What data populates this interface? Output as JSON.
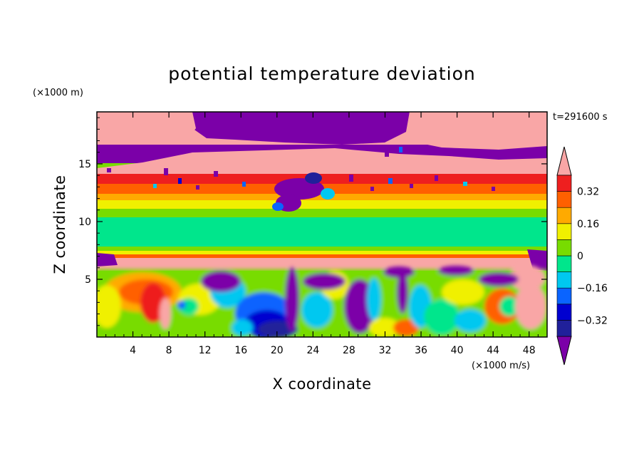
{
  "chart_data": {
    "type": "heatmap",
    "title": "potential temperature deviation",
    "xlabel": "X coordinate",
    "ylabel": "Z coordinate",
    "x_unit": "(×1000 m/s)",
    "y_unit": "(×1000 m)",
    "time_label": "t=291600 s",
    "xlim": [
      0,
      50
    ],
    "ylim": [
      0,
      19.5
    ],
    "x_ticks": [
      4,
      8,
      12,
      16,
      20,
      24,
      28,
      32,
      36,
      40,
      44,
      48
    ],
    "y_ticks": [
      5,
      10,
      15
    ],
    "colorbar": {
      "levels": [
        -0.4,
        -0.32,
        -0.24,
        -0.16,
        -0.08,
        0,
        0.08,
        0.16,
        0.24,
        0.32,
        0.4
      ],
      "colors": [
        "#7b00a8",
        "#20209a",
        "#0000d0",
        "#0a64ff",
        "#00c8f0",
        "#00e68c",
        "#78dc00",
        "#f0f000",
        "#ffaa00",
        "#ff6000",
        "#ee1f1f",
        "#f9a6a6"
      ],
      "tick_values": [
        0.32,
        0.16,
        0,
        -0.16,
        -0.32
      ],
      "tick_labels": [
        "0.32",
        "0.16",
        "0",
        "−0.16",
        "−0.32"
      ]
    },
    "layers": [
      {
        "z_range": [
          18.3,
          19.5
        ],
        "value": "above 0.4"
      },
      {
        "z_range": [
          16.7,
          18.3
        ],
        "value": "mixed: below −0.4 and above 0.4"
      },
      {
        "z_range": [
          15.2,
          16.7
        ],
        "value": "0.32 to above 0.4"
      },
      {
        "z_range": [
          13.0,
          15.0
        ],
        "value": "0.16 to 0.32"
      },
      {
        "z_range": [
          8.0,
          12.5
        ],
        "value": "0 to 0.08"
      },
      {
        "z_range": [
          6.0,
          7.0
        ],
        "value": "above 0.4 / below −0.4"
      },
      {
        "z_range": [
          0,
          6.0
        ],
        "value": "turbulent, −0.4 to above 0.4"
      }
    ]
  }
}
